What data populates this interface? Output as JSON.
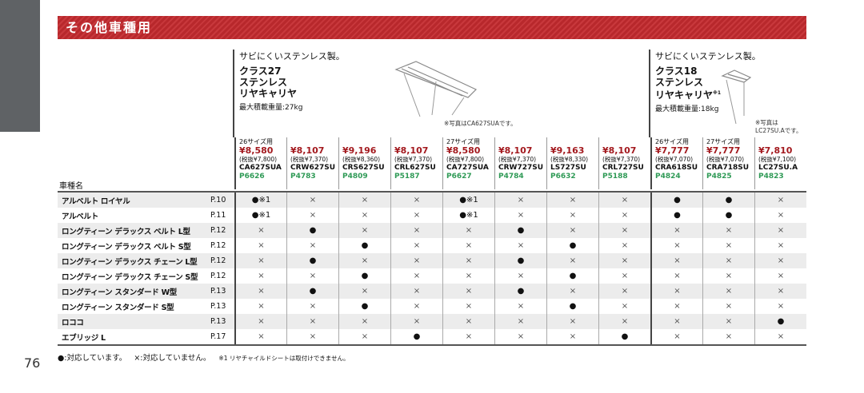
{
  "page_number": "76",
  "section_title": "その他車種用",
  "groups": [
    {
      "tagline": "サビにくいステンレス製。",
      "name": [
        "クラス27",
        "ステンレス",
        "リヤキャリヤ"
      ],
      "name_sup": "",
      "max_load": "最大積載重量:27kg",
      "photo_note": "※写真はCA627SUAです。"
    },
    {
      "tagline": "サビにくいステンレス製。",
      "name": [
        "クラス18",
        "ステンレス",
        "リヤキャリヤ"
      ],
      "name_sup": "※1",
      "max_load": "最大積載重量:18kg",
      "photo_note": "※写真は LC27SU.Aです。"
    }
  ],
  "vehicle_header": "車種名",
  "products": [
    {
      "size": "26サイズ用",
      "price": "¥8,580",
      "tax": "(税抜¥7,800)",
      "code": "CA627SUA",
      "pcode": "P6626"
    },
    {
      "size": "",
      "price": "¥8,107",
      "tax": "(税抜¥7,370)",
      "code": "CRW627SU",
      "pcode": "P4783"
    },
    {
      "size": "",
      "price": "¥9,196",
      "tax": "(税抜¥8,360)",
      "code": "CRS627SU",
      "pcode": "P4809"
    },
    {
      "size": "",
      "price": "¥8,107",
      "tax": "(税抜¥7,370)",
      "code": "CRL627SU",
      "pcode": "P5187"
    },
    {
      "size": "27サイズ用",
      "price": "¥8,580",
      "tax": "(税抜¥7,800)",
      "code": "CA727SUA",
      "pcode": "P6627"
    },
    {
      "size": "",
      "price": "¥8,107",
      "tax": "(税抜¥7,370)",
      "code": "CRW727SU",
      "pcode": "P4784"
    },
    {
      "size": "",
      "price": "¥9,163",
      "tax": "(税抜¥8,330)",
      "code": "LS727SU",
      "pcode": "P6632"
    },
    {
      "size": "",
      "price": "¥8,107",
      "tax": "(税抜¥7,370)",
      "code": "CRL727SU",
      "pcode": "P5188"
    },
    {
      "size": "26サイズ用",
      "price": "¥7,777",
      "tax": "(税抜¥7,070)",
      "code": "CRA618SU",
      "pcode": "P4824"
    },
    {
      "size": "27サイズ用",
      "price": "¥7,777",
      "tax": "(税抜¥7,070)",
      "code": "CRA718SU",
      "pcode": "P4825"
    },
    {
      "size": "",
      "price": "¥7,810",
      "tax": "(税抜¥7,100)",
      "code": "LC27SU.A",
      "pcode": "P4823"
    }
  ],
  "rows": [
    {
      "name": "アルベルト ロイヤル",
      "page": "P.10",
      "v": [
        "●※1",
        "×",
        "×",
        "×",
        "●※1",
        "×",
        "×",
        "×",
        "●",
        "●",
        "×"
      ]
    },
    {
      "name": "アルベルト",
      "page": "P.11",
      "v": [
        "●※1",
        "×",
        "×",
        "×",
        "●※1",
        "×",
        "×",
        "×",
        "●",
        "●",
        "×"
      ]
    },
    {
      "name": "ロングティーン デラックス ベルト L型",
      "page": "P.12",
      "v": [
        "×",
        "●",
        "×",
        "×",
        "×",
        "●",
        "×",
        "×",
        "×",
        "×",
        "×"
      ]
    },
    {
      "name": "ロングティーン デラックス ベルト S型",
      "page": "P.12",
      "v": [
        "×",
        "×",
        "●",
        "×",
        "×",
        "×",
        "●",
        "×",
        "×",
        "×",
        "×"
      ]
    },
    {
      "name": "ロングティーン デラックス チェーン L型",
      "page": "P.12",
      "v": [
        "×",
        "●",
        "×",
        "×",
        "×",
        "●",
        "×",
        "×",
        "×",
        "×",
        "×"
      ]
    },
    {
      "name": "ロングティーン デラックス チェーン S型",
      "page": "P.12",
      "v": [
        "×",
        "×",
        "●",
        "×",
        "×",
        "×",
        "●",
        "×",
        "×",
        "×",
        "×"
      ]
    },
    {
      "name": "ロングティーン スタンダード W型",
      "page": "P.13",
      "v": [
        "×",
        "●",
        "×",
        "×",
        "×",
        "●",
        "×",
        "×",
        "×",
        "×",
        "×"
      ]
    },
    {
      "name": "ロングティーン スタンダード S型",
      "page": "P.13",
      "v": [
        "×",
        "×",
        "●",
        "×",
        "×",
        "×",
        "●",
        "×",
        "×",
        "×",
        "×"
      ]
    },
    {
      "name": "ロココ",
      "page": "P.13",
      "v": [
        "×",
        "×",
        "×",
        "×",
        "×",
        "×",
        "×",
        "×",
        "×",
        "×",
        "●"
      ]
    },
    {
      "name": "エブリッジ L",
      "page": "P.17",
      "v": [
        "×",
        "×",
        "×",
        "●",
        "×",
        "×",
        "×",
        "●",
        "×",
        "×",
        "×"
      ]
    }
  ],
  "legend": {
    "yes": "●:対応しています。",
    "no": "×:対応していません。",
    "note": "※1 リヤチャイルドシートは取付けできません。"
  },
  "colors": {
    "title_bar": "#b8282c",
    "price": "#a3191e",
    "product_code": "#2f9a56"
  }
}
